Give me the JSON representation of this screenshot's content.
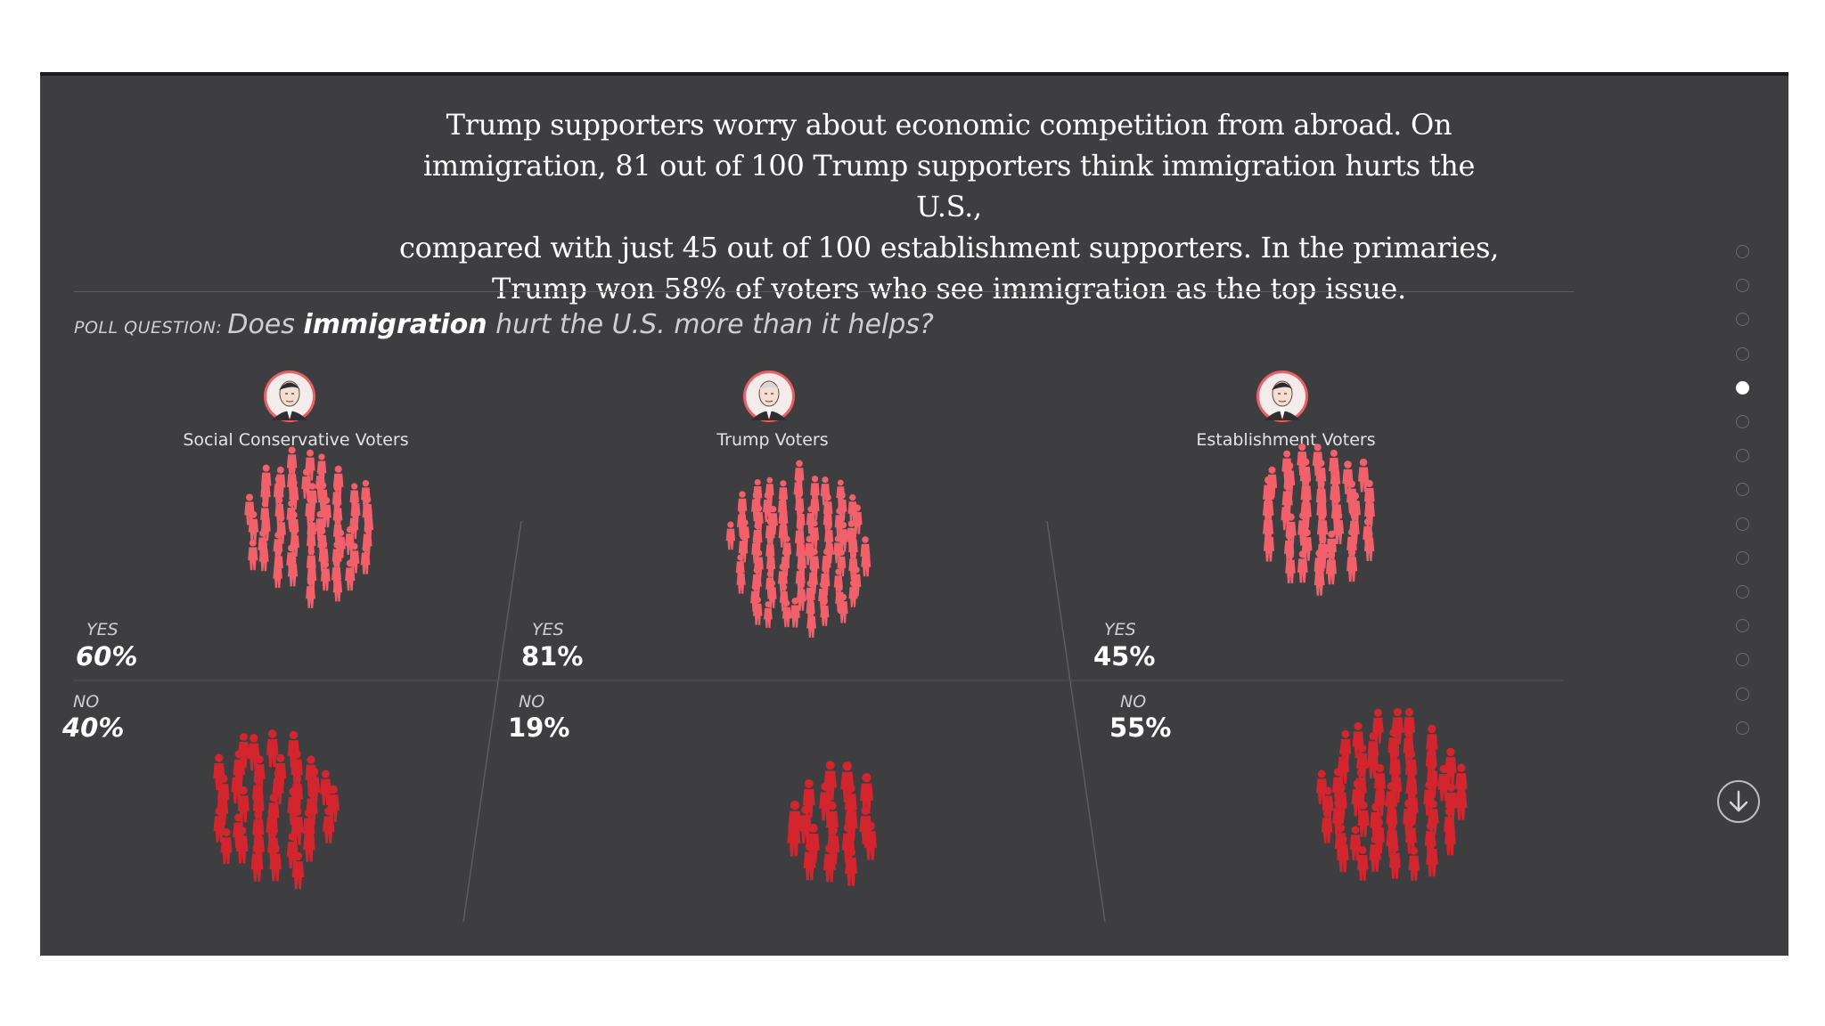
{
  "headline": {
    "lines": [
      "Trump supporters worry about economic competition from abroad. On",
      "immigration, 81 out of 100 Trump supporters think immigration hurts the U.S.,",
      "compared with just 45 out of 100 establishment supporters. In the primaries,",
      "Trump won 58% of voters who see immigration as the top issue."
    ]
  },
  "poll": {
    "label": "POLL QUESTION:",
    "prefix": "Does ",
    "keyword": "immigration",
    "suffix": " hurt the U.S. more than it helps?"
  },
  "colors": {
    "yes": "#f2616b",
    "no": "#d3252e",
    "background": "#3e3e41",
    "avatar_ring": "#ec5f66"
  },
  "chart_data": {
    "type": "pictogram",
    "title": "Does immigration hurt the U.S. more than it helps?",
    "unit": "out of 100 voters",
    "categories": [
      "Social Conservative Voters",
      "Trump Voters",
      "Establishment Voters"
    ],
    "series": [
      {
        "name": "YES",
        "values": [
          60,
          81,
          45
        ],
        "labels": [
          "60%",
          "81%",
          "45%"
        ]
      },
      {
        "name": "NO",
        "values": [
          40,
          19,
          55
        ],
        "labels": [
          "40%",
          "19%",
          "55%"
        ]
      }
    ],
    "avatars": [
      "conservative-candidate",
      "trump",
      "establishment-candidate"
    ]
  },
  "nav": {
    "count": 15,
    "active_index": 4
  },
  "icons": {
    "down": "arrow-down-icon",
    "nav": "nav-dot-icon"
  }
}
